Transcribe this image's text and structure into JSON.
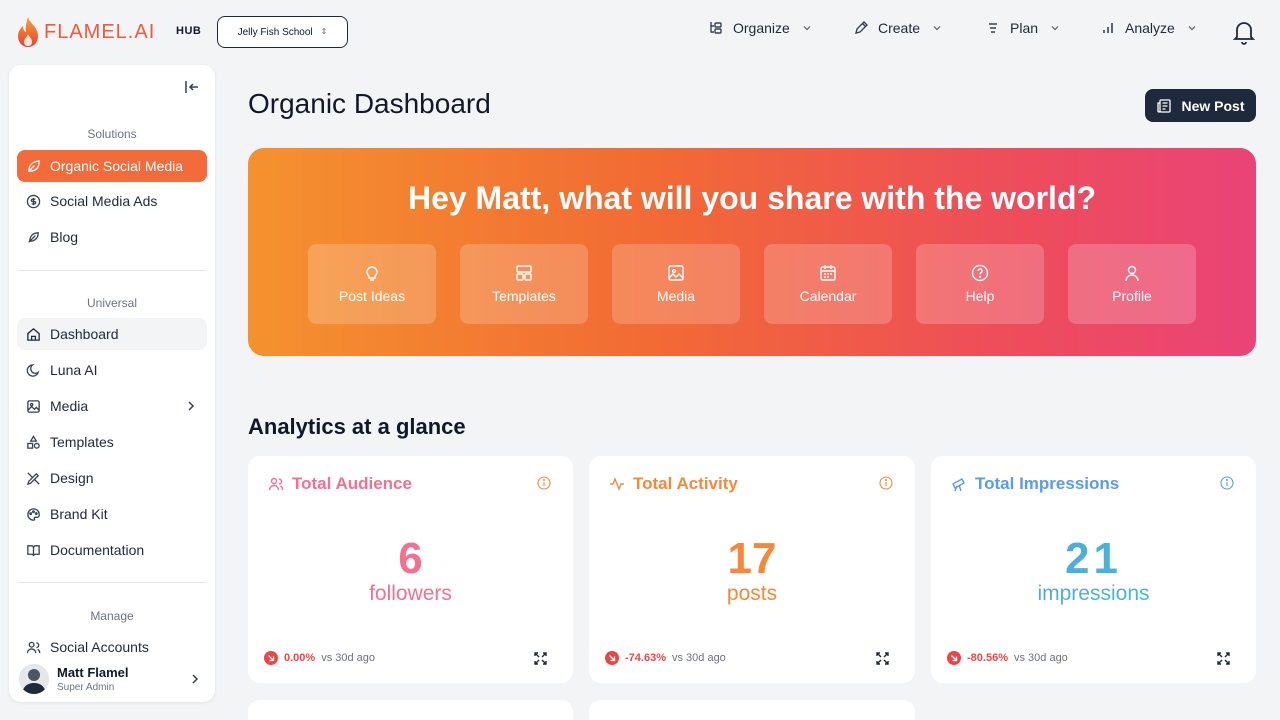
{
  "brand": {
    "name": "FLAMEL.AI",
    "hub_label": "HUB"
  },
  "workspace": {
    "selected": "Jelly Fish School"
  },
  "topnav": [
    {
      "label": "Organize",
      "icon": "organize-icon"
    },
    {
      "label": "Create",
      "icon": "pen-icon"
    },
    {
      "label": "Plan",
      "icon": "list-icon"
    },
    {
      "label": "Analyze",
      "icon": "bar-chart-icon"
    }
  ],
  "sidebar": {
    "sections": {
      "solutions": "Solutions",
      "universal": "Universal",
      "manage": "Manage"
    },
    "solutions_items": [
      {
        "label": "Organic Social Media",
        "icon": "leaf-icon"
      },
      {
        "label": "Social Media Ads",
        "icon": "dollar-icon"
      },
      {
        "label": "Blog",
        "icon": "feather-icon"
      }
    ],
    "universal_items": [
      {
        "label": "Dashboard",
        "icon": "home-icon"
      },
      {
        "label": "Luna AI",
        "icon": "moon-icon"
      },
      {
        "label": "Media",
        "icon": "image-icon"
      },
      {
        "label": "Templates",
        "icon": "shapes-icon"
      },
      {
        "label": "Design",
        "icon": "pen-tool-icon"
      },
      {
        "label": "Brand Kit",
        "icon": "palette-icon"
      },
      {
        "label": "Documentation",
        "icon": "book-icon"
      }
    ],
    "manage_items": [
      {
        "label": "Social Accounts",
        "icon": "users-icon"
      }
    ],
    "user": {
      "name": "Matt Flamel",
      "role": "Super Admin"
    }
  },
  "main": {
    "title": "Organic Dashboard",
    "new_post_label": "New Post",
    "hero": {
      "greeting": "Hey Matt, what will you share with the world?",
      "tiles": [
        {
          "label": "Post Ideas",
          "icon": "lightbulb-icon"
        },
        {
          "label": "Templates",
          "icon": "layout-icon"
        },
        {
          "label": "Media",
          "icon": "image-icon"
        },
        {
          "label": "Calendar",
          "icon": "calendar-icon"
        },
        {
          "label": "Help",
          "icon": "help-icon"
        },
        {
          "label": "Profile",
          "icon": "user-icon"
        }
      ]
    },
    "analytics_title": "Analytics at a glance",
    "cards": [
      {
        "title": "Total Audience",
        "value": "6",
        "unit": "followers",
        "change": "0.00%",
        "compare": "vs 30d ago",
        "color": "#f3708f",
        "icon": "users-icon"
      },
      {
        "title": "Total Activity",
        "value": "17",
        "unit": "posts",
        "change": "-74.63%",
        "compare": "vs 30d ago",
        "color": "#f5883a",
        "icon": "activity-icon"
      },
      {
        "title": "Total Impressions",
        "value": "21",
        "unit": "impressions",
        "change": "-80.56%",
        "compare": "vs 30d ago",
        "color": "#5a9bf0",
        "icon": "telescope-icon"
      }
    ]
  }
}
